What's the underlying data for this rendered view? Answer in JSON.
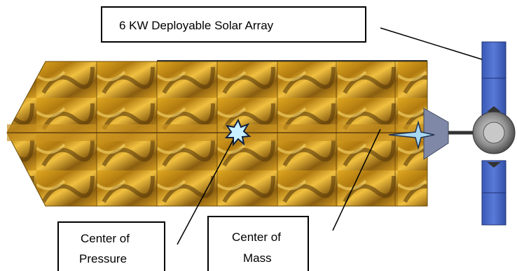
{
  "labels": {
    "solar_array": "6 KW Deployable Solar Array",
    "center_of_pressure": [
      "Center of",
      "Pressure"
    ],
    "center_of_mass": [
      "Center of",
      "Mass"
    ]
  }
}
